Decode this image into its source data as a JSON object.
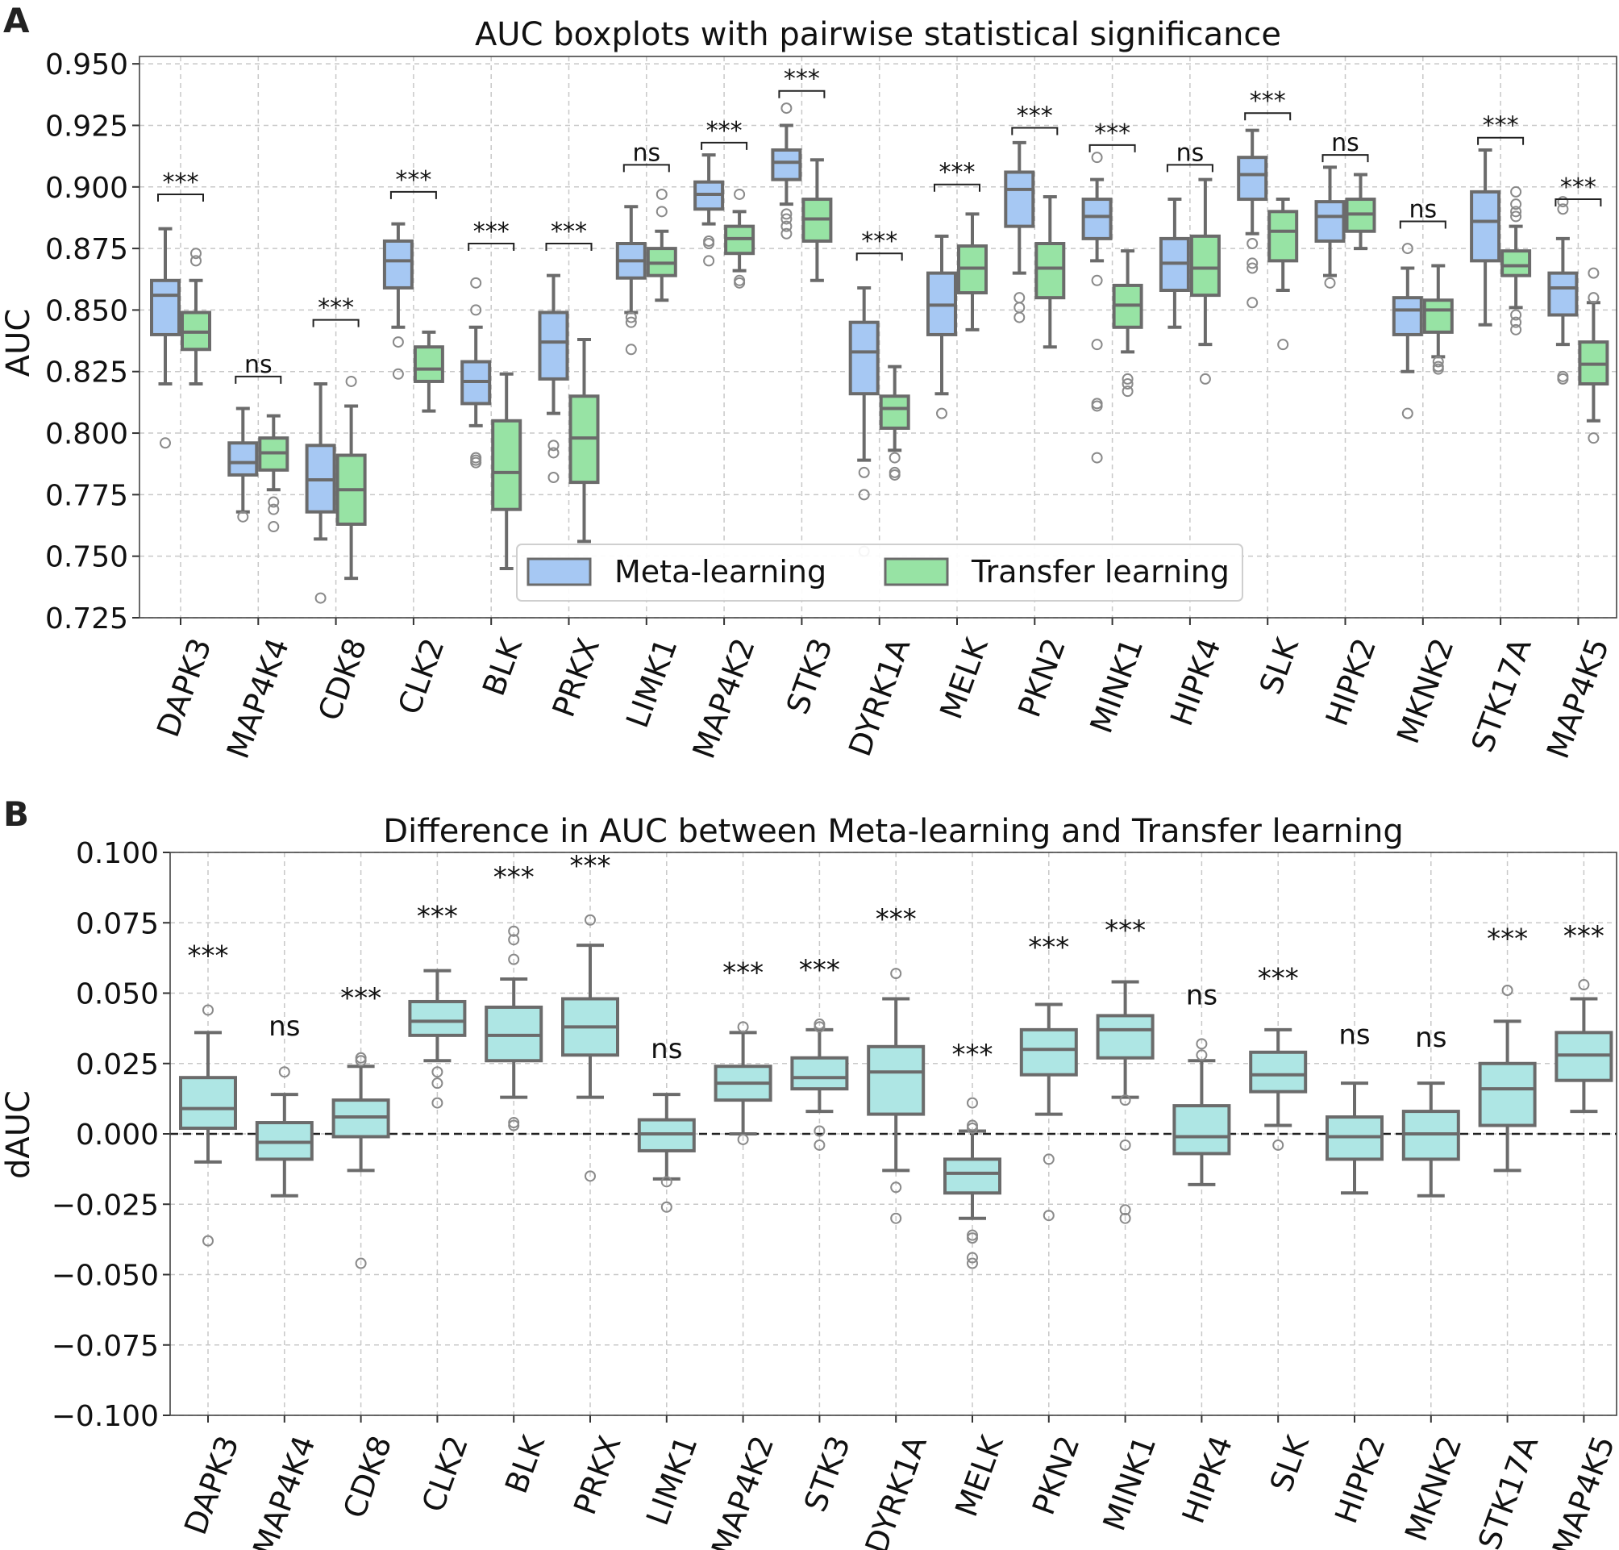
{
  "colors": {
    "meta": "#a6c8f3",
    "transfer": "#97e3a4",
    "diff": "#aee6e4",
    "edge": "#6b6b6b",
    "grid": "#c8c8c8",
    "text": "#111111"
  },
  "chart_data": [
    {
      "panel_label": "A",
      "type": "box",
      "title": "AUC boxplots with pairwise statistical significance",
      "ylabel": "AUC",
      "xlabel": "",
      "ylim": [
        0.725,
        0.953
      ],
      "yticks": [
        "0.725",
        "0.750",
        "0.775",
        "0.800",
        "0.825",
        "0.850",
        "0.875",
        "0.900",
        "0.925",
        "0.950"
      ],
      "grid": true,
      "legend": {
        "position": "lower-center",
        "entries": [
          "Meta-learning",
          "Transfer learning"
        ]
      },
      "categories": [
        "DAPK3",
        "MAP4K4",
        "CDK8",
        "CLK2",
        "BLK",
        "PRKX",
        "LIMK1",
        "MAP4K2",
        "STK3",
        "DYRK1A",
        "MELK",
        "PKN2",
        "MINK1",
        "HIPK4",
        "SLK",
        "HIPK2",
        "MKNK2",
        "STK17A",
        "MAP4K5"
      ],
      "series": [
        {
          "name": "Meta-learning",
          "boxes": [
            {
              "whislo": 0.82,
              "q1": 0.84,
              "med": 0.856,
              "q3": 0.862,
              "whishi": 0.883,
              "fliers": [
                0.796
              ]
            },
            {
              "whislo": 0.768,
              "q1": 0.783,
              "med": 0.788,
              "q3": 0.796,
              "whishi": 0.81,
              "fliers": [
                0.766
              ]
            },
            {
              "whislo": 0.757,
              "q1": 0.768,
              "med": 0.781,
              "q3": 0.795,
              "whishi": 0.82,
              "fliers": [
                0.733
              ]
            },
            {
              "whislo": 0.843,
              "q1": 0.859,
              "med": 0.87,
              "q3": 0.878,
              "whishi": 0.885,
              "fliers": [
                0.837,
                0.824
              ]
            },
            {
              "whislo": 0.803,
              "q1": 0.812,
              "med": 0.821,
              "q3": 0.829,
              "whishi": 0.843,
              "fliers": [
                0.861,
                0.85,
                0.79,
                0.789,
                0.788
              ]
            },
            {
              "whislo": 0.808,
              "q1": 0.822,
              "med": 0.837,
              "q3": 0.849,
              "whishi": 0.864,
              "fliers": [
                0.795,
                0.792,
                0.782
              ]
            },
            {
              "whislo": 0.849,
              "q1": 0.863,
              "med": 0.87,
              "q3": 0.877,
              "whishi": 0.892,
              "fliers": [
                0.847,
                0.845,
                0.834
              ]
            },
            {
              "whislo": 0.885,
              "q1": 0.891,
              "med": 0.897,
              "q3": 0.902,
              "whishi": 0.913,
              "fliers": [
                0.878,
                0.877,
                0.87
              ]
            },
            {
              "whislo": 0.893,
              "q1": 0.903,
              "med": 0.91,
              "q3": 0.915,
              "whishi": 0.925,
              "fliers": [
                0.932,
                0.889,
                0.887,
                0.884,
                0.881
              ]
            },
            {
              "whislo": 0.789,
              "q1": 0.816,
              "med": 0.833,
              "q3": 0.845,
              "whishi": 0.859,
              "fliers": [
                0.784,
                0.775,
                0.752
              ]
            },
            {
              "whislo": 0.816,
              "q1": 0.84,
              "med": 0.852,
              "q3": 0.865,
              "whishi": 0.88,
              "fliers": [
                0.808
              ]
            },
            {
              "whislo": 0.865,
              "q1": 0.884,
              "med": 0.899,
              "q3": 0.906,
              "whishi": 0.918,
              "fliers": [
                0.855,
                0.851,
                0.847
              ]
            },
            {
              "whislo": 0.87,
              "q1": 0.879,
              "med": 0.888,
              "q3": 0.895,
              "whishi": 0.903,
              "fliers": [
                0.912,
                0.862,
                0.836,
                0.812,
                0.811,
                0.79
              ]
            },
            {
              "whislo": 0.843,
              "q1": 0.858,
              "med": 0.869,
              "q3": 0.879,
              "whishi": 0.895,
              "fliers": []
            },
            {
              "whislo": 0.881,
              "q1": 0.895,
              "med": 0.905,
              "q3": 0.912,
              "whishi": 0.923,
              "fliers": [
                0.877,
                0.869,
                0.867,
                0.853
              ]
            },
            {
              "whislo": 0.864,
              "q1": 0.878,
              "med": 0.888,
              "q3": 0.894,
              "whishi": 0.908,
              "fliers": [
                0.861
              ]
            },
            {
              "whislo": 0.825,
              "q1": 0.84,
              "med": 0.85,
              "q3": 0.855,
              "whishi": 0.867,
              "fliers": [
                0.875,
                0.808
              ]
            },
            {
              "whislo": 0.844,
              "q1": 0.87,
              "med": 0.886,
              "q3": 0.898,
              "whishi": 0.915,
              "fliers": []
            },
            {
              "whislo": 0.836,
              "q1": 0.848,
              "med": 0.859,
              "q3": 0.865,
              "whishi": 0.879,
              "fliers": [
                0.894,
                0.891,
                0.823,
                0.822
              ]
            }
          ]
        },
        {
          "name": "Transfer learning",
          "boxes": [
            {
              "whislo": 0.82,
              "q1": 0.834,
              "med": 0.841,
              "q3": 0.849,
              "whishi": 0.862,
              "fliers": [
                0.873,
                0.87
              ]
            },
            {
              "whislo": 0.777,
              "q1": 0.785,
              "med": 0.792,
              "q3": 0.798,
              "whishi": 0.807,
              "fliers": [
                0.772,
                0.769,
                0.762
              ]
            },
            {
              "whislo": 0.741,
              "q1": 0.763,
              "med": 0.777,
              "q3": 0.791,
              "whishi": 0.811,
              "fliers": [
                0.821
              ]
            },
            {
              "whislo": 0.809,
              "q1": 0.821,
              "med": 0.826,
              "q3": 0.835,
              "whishi": 0.841,
              "fliers": []
            },
            {
              "whislo": 0.745,
              "q1": 0.769,
              "med": 0.784,
              "q3": 0.805,
              "whishi": 0.824,
              "fliers": []
            },
            {
              "whislo": 0.756,
              "q1": 0.78,
              "med": 0.798,
              "q3": 0.815,
              "whishi": 0.838,
              "fliers": []
            },
            {
              "whislo": 0.854,
              "q1": 0.864,
              "med": 0.869,
              "q3": 0.875,
              "whishi": 0.882,
              "fliers": [
                0.897,
                0.89
              ]
            },
            {
              "whislo": 0.866,
              "q1": 0.873,
              "med": 0.879,
              "q3": 0.884,
              "whishi": 0.89,
              "fliers": [
                0.897,
                0.862,
                0.861
              ]
            },
            {
              "whislo": 0.862,
              "q1": 0.878,
              "med": 0.887,
              "q3": 0.895,
              "whishi": 0.911,
              "fliers": []
            },
            {
              "whislo": 0.793,
              "q1": 0.802,
              "med": 0.81,
              "q3": 0.815,
              "whishi": 0.827,
              "fliers": [
                0.79,
                0.784,
                0.783
              ]
            },
            {
              "whislo": 0.842,
              "q1": 0.857,
              "med": 0.867,
              "q3": 0.876,
              "whishi": 0.889,
              "fliers": []
            },
            {
              "whislo": 0.835,
              "q1": 0.855,
              "med": 0.867,
              "q3": 0.877,
              "whishi": 0.896,
              "fliers": []
            },
            {
              "whislo": 0.833,
              "q1": 0.843,
              "med": 0.852,
              "q3": 0.86,
              "whishi": 0.874,
              "fliers": [
                0.822,
                0.82,
                0.817
              ]
            },
            {
              "whislo": 0.836,
              "q1": 0.856,
              "med": 0.867,
              "q3": 0.88,
              "whishi": 0.903,
              "fliers": [
                0.822
              ]
            },
            {
              "whislo": 0.858,
              "q1": 0.87,
              "med": 0.882,
              "q3": 0.89,
              "whishi": 0.895,
              "fliers": [
                0.836
              ]
            },
            {
              "whislo": 0.875,
              "q1": 0.882,
              "med": 0.889,
              "q3": 0.895,
              "whishi": 0.905,
              "fliers": []
            },
            {
              "whislo": 0.831,
              "q1": 0.841,
              "med": 0.85,
              "q3": 0.854,
              "whishi": 0.868,
              "fliers": [
                0.829,
                0.827,
                0.826
              ]
            },
            {
              "whislo": 0.851,
              "q1": 0.864,
              "med": 0.868,
              "q3": 0.874,
              "whishi": 0.884,
              "fliers": [
                0.898,
                0.893,
                0.89,
                0.888,
                0.848,
                0.845,
                0.842
              ]
            },
            {
              "whislo": 0.805,
              "q1": 0.82,
              "med": 0.828,
              "q3": 0.837,
              "whishi": 0.853,
              "fliers": [
                0.865,
                0.855,
                0.798
              ]
            }
          ]
        }
      ],
      "annotations": [
        {
          "text": "***",
          "bracket_y": 0.897
        },
        {
          "text": "ns",
          "bracket_y": 0.823
        },
        {
          "text": "***",
          "bracket_y": 0.846
        },
        {
          "text": "***",
          "bracket_y": 0.898
        },
        {
          "text": "***",
          "bracket_y": 0.877
        },
        {
          "text": "***",
          "bracket_y": 0.877
        },
        {
          "text": "ns",
          "bracket_y": 0.909
        },
        {
          "text": "***",
          "bracket_y": 0.918
        },
        {
          "text": "***",
          "bracket_y": 0.939
        },
        {
          "text": "***",
          "bracket_y": 0.873
        },
        {
          "text": "***",
          "bracket_y": 0.901
        },
        {
          "text": "***",
          "bracket_y": 0.924
        },
        {
          "text": "***",
          "bracket_y": 0.917
        },
        {
          "text": "ns",
          "bracket_y": 0.909
        },
        {
          "text": "***",
          "bracket_y": 0.93
        },
        {
          "text": "ns",
          "bracket_y": 0.913
        },
        {
          "text": "ns",
          "bracket_y": 0.886
        },
        {
          "text": "***",
          "bracket_y": 0.92
        },
        {
          "text": "***",
          "bracket_y": 0.895
        }
      ]
    },
    {
      "panel_label": "B",
      "type": "box",
      "title": "Difference in AUC between Meta-learning and Transfer learning",
      "ylabel": "dAUC",
      "xlabel": "",
      "ylim": [
        -0.1,
        0.1
      ],
      "yticks": [
        "−0.100",
        "−0.075",
        "−0.050",
        "−0.025",
        "0.000",
        "0.025",
        "0.050",
        "0.075",
        "0.100"
      ],
      "grid": true,
      "reference_line_y": 0,
      "categories": [
        "DAPK3",
        "MAP4K4",
        "CDK8",
        "CLK2",
        "BLK",
        "PRKX",
        "LIMK1",
        "MAP4K2",
        "STK3",
        "DYRK1A",
        "MELK",
        "PKN2",
        "MINK1",
        "HIPK4",
        "SLK",
        "HIPK2",
        "MKNK2",
        "STK17A",
        "MAP4K5"
      ],
      "series": [
        {
          "name": "",
          "boxes": [
            {
              "whislo": -0.01,
              "q1": 0.002,
              "med": 0.009,
              "q3": 0.02,
              "whishi": 0.036,
              "fliers": [
                0.044,
                -0.038
              ]
            },
            {
              "whislo": -0.022,
              "q1": -0.009,
              "med": -0.003,
              "q3": 0.004,
              "whishi": 0.014,
              "fliers": [
                0.022
              ]
            },
            {
              "whislo": -0.013,
              "q1": -0.001,
              "med": 0.006,
              "q3": 0.012,
              "whishi": 0.024,
              "fliers": [
                0.027,
                0.026,
                -0.046
              ]
            },
            {
              "whislo": 0.026,
              "q1": 0.035,
              "med": 0.04,
              "q3": 0.047,
              "whishi": 0.058,
              "fliers": [
                0.022,
                0.018,
                0.011
              ]
            },
            {
              "whislo": 0.013,
              "q1": 0.026,
              "med": 0.035,
              "q3": 0.045,
              "whishi": 0.055,
              "fliers": [
                0.072,
                0.069,
                0.062,
                0.004,
                0.003
              ]
            },
            {
              "whislo": 0.013,
              "q1": 0.028,
              "med": 0.038,
              "q3": 0.048,
              "whishi": 0.067,
              "fliers": [
                0.076,
                -0.015
              ]
            },
            {
              "whislo": -0.016,
              "q1": -0.006,
              "med": 0.0,
              "q3": 0.005,
              "whishi": 0.014,
              "fliers": [
                -0.017,
                -0.026
              ]
            },
            {
              "whislo": 0.0,
              "q1": 0.012,
              "med": 0.018,
              "q3": 0.024,
              "whishi": 0.036,
              "fliers": [
                0.038,
                -0.002
              ]
            },
            {
              "whislo": 0.008,
              "q1": 0.016,
              "med": 0.02,
              "q3": 0.027,
              "whishi": 0.037,
              "fliers": [
                0.039,
                0.038,
                0.001,
                -0.004
              ]
            },
            {
              "whislo": -0.013,
              "q1": 0.007,
              "med": 0.022,
              "q3": 0.031,
              "whishi": 0.048,
              "fliers": [
                0.057,
                -0.019,
                -0.03
              ]
            },
            {
              "whislo": -0.03,
              "q1": -0.021,
              "med": -0.014,
              "q3": -0.009,
              "whishi": 0.001,
              "fliers": [
                0.011,
                0.003,
                0.002,
                -0.036,
                -0.037,
                -0.044,
                -0.046
              ]
            },
            {
              "whislo": 0.007,
              "q1": 0.021,
              "med": 0.03,
              "q3": 0.037,
              "whishi": 0.046,
              "fliers": [
                -0.009,
                -0.029
              ]
            },
            {
              "whislo": 0.013,
              "q1": 0.027,
              "med": 0.037,
              "q3": 0.042,
              "whishi": 0.054,
              "fliers": [
                0.012,
                -0.004,
                -0.027,
                -0.03
              ]
            },
            {
              "whislo": -0.018,
              "q1": -0.007,
              "med": -0.001,
              "q3": 0.01,
              "whishi": 0.026,
              "fliers": [
                0.032,
                0.028
              ]
            },
            {
              "whislo": 0.003,
              "q1": 0.015,
              "med": 0.021,
              "q3": 0.029,
              "whishi": 0.037,
              "fliers": [
                -0.004
              ]
            },
            {
              "whislo": -0.021,
              "q1": -0.009,
              "med": -0.001,
              "q3": 0.006,
              "whishi": 0.018,
              "fliers": []
            },
            {
              "whislo": -0.022,
              "q1": -0.009,
              "med": 0.0,
              "q3": 0.008,
              "whishi": 0.018,
              "fliers": []
            },
            {
              "whislo": -0.013,
              "q1": 0.003,
              "med": 0.016,
              "q3": 0.025,
              "whishi": 0.04,
              "fliers": [
                0.051
              ]
            },
            {
              "whislo": 0.008,
              "q1": 0.019,
              "med": 0.028,
              "q3": 0.036,
              "whishi": 0.048,
              "fliers": [
                0.053
              ]
            }
          ]
        }
      ],
      "annotations": [
        {
          "text": "***",
          "y": 0.06
        },
        {
          "text": "ns",
          "y": 0.035
        },
        {
          "text": "***",
          "y": 0.045
        },
        {
          "text": "***",
          "y": 0.074
        },
        {
          "text": "***",
          "y": 0.088
        },
        {
          "text": "***",
          "y": 0.092
        },
        {
          "text": "ns",
          "y": 0.027
        },
        {
          "text": "***",
          "y": 0.054
        },
        {
          "text": "***",
          "y": 0.055
        },
        {
          "text": "***",
          "y": 0.073
        },
        {
          "text": "***",
          "y": 0.025
        },
        {
          "text": "***",
          "y": 0.063
        },
        {
          "text": "***",
          "y": 0.069
        },
        {
          "text": "ns",
          "y": 0.046
        },
        {
          "text": "***",
          "y": 0.052
        },
        {
          "text": "ns",
          "y": 0.032
        },
        {
          "text": "ns",
          "y": 0.031
        },
        {
          "text": "***",
          "y": 0.066
        },
        {
          "text": "***",
          "y": 0.067
        }
      ]
    }
  ]
}
